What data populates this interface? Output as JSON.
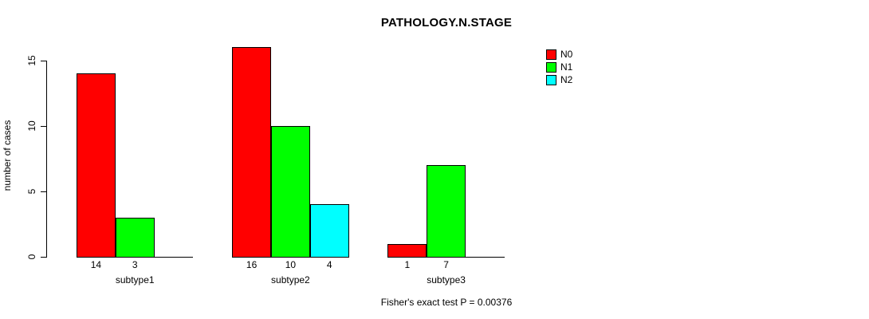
{
  "chart_data": {
    "type": "bar",
    "title": "PATHOLOGY.N.STAGE",
    "ylabel": "number of cases",
    "xlabel": "",
    "categories": [
      "subtype1",
      "subtype2",
      "subtype3"
    ],
    "series": [
      {
        "name": "N0",
        "color": "#ff0000",
        "values": [
          14,
          16,
          1
        ]
      },
      {
        "name": "N1",
        "color": "#00ff00",
        "values": [
          3,
          10,
          7
        ]
      },
      {
        "name": "N2",
        "color": "#00ffff",
        "values": [
          0,
          4,
          0
        ]
      }
    ],
    "bar_value_labels_visible": true,
    "yticks": [
      0,
      5,
      10,
      15
    ],
    "ylim": [
      0,
      16
    ],
    "grid": false,
    "legend_position": "top-right",
    "legend_entries": [
      "N0",
      "N1",
      "N2"
    ],
    "annotation": "Fisher's exact test P = 0.00376"
  },
  "colors": {
    "background": "#ffffff",
    "axis": "#000000",
    "text": "#000000"
  }
}
